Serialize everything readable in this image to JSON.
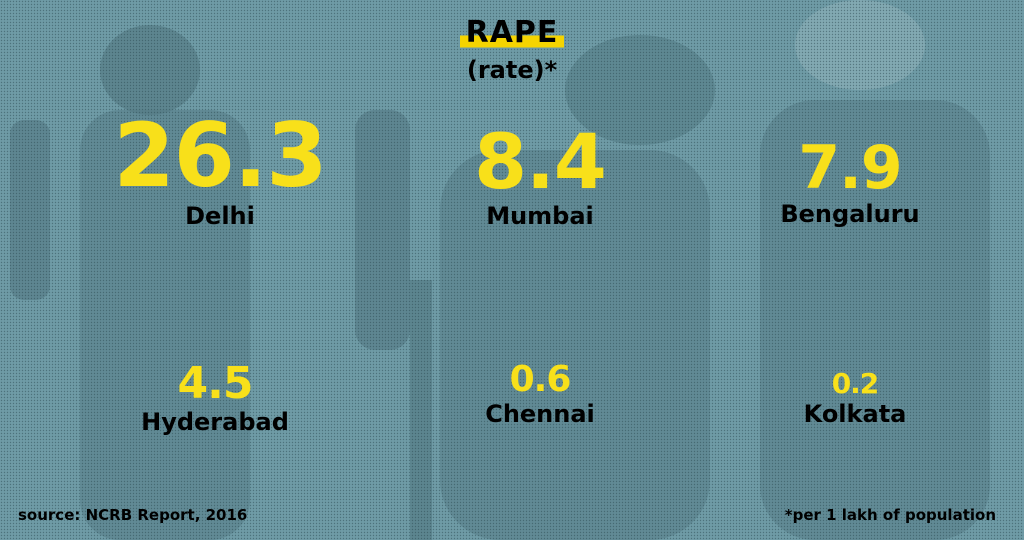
{
  "header": {
    "title": "RAPE",
    "subtitle": "(rate)*"
  },
  "stats": [
    {
      "value": "26.3",
      "city": "Delhi"
    },
    {
      "value": "8.4",
      "city": "Mumbai"
    },
    {
      "value": "7.9",
      "city": "Bengaluru"
    },
    {
      "value": "4.5",
      "city": "Hyderabad"
    },
    {
      "value": "0.6",
      "city": "Chennai"
    },
    {
      "value": "0.2",
      "city": "Kolkata"
    }
  ],
  "footer": {
    "source": "source: NCRB Report, 2016",
    "note": "*per 1 lakh of population"
  },
  "colors": {
    "background": "#6c98a3",
    "value": "#f8e01a",
    "highlight": "#f5d400"
  }
}
